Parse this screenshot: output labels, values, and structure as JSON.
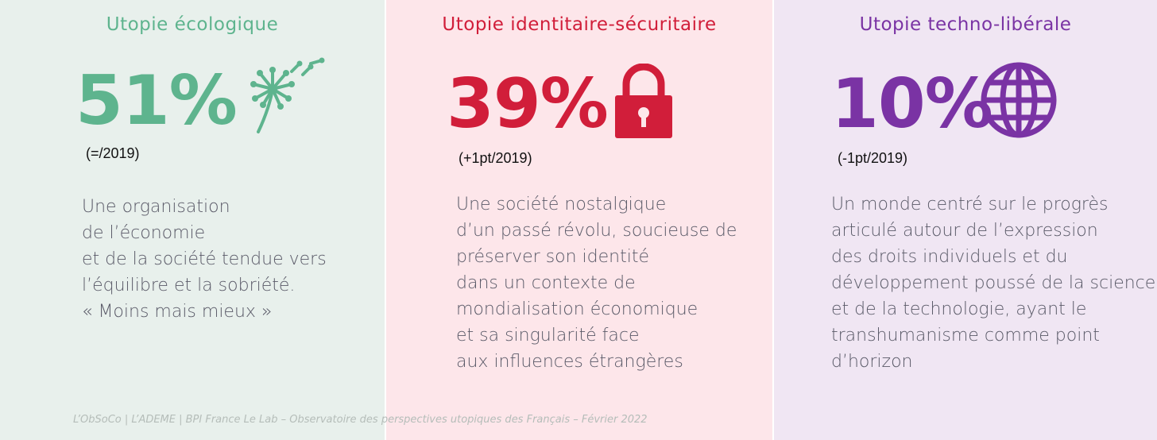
{
  "colors": {
    "ecologique": "#5eb48e",
    "securitaire": "#d11e3a",
    "liberale": "#7a33a4"
  },
  "panels": [
    {
      "title": "Utopie écologique",
      "percent": "51%",
      "change": "(=/2019)",
      "icon": "dandelion-icon",
      "lines": [
        "Une organisation",
        "de l’économie",
        "et de la société tendue vers",
        "l’équilibre et la sobriété.",
        "« Moins mais mieux »"
      ]
    },
    {
      "title": "Utopie identitaire-sécuritaire",
      "percent": "39%",
      "change": "(+1pt/2019)",
      "icon": "padlock-icon",
      "lines": [
        "Une société nostalgique",
        "d’un passé révolu, soucieuse de",
        "préserver son identité",
        "dans un contexte de",
        "mondialisation économique",
        "et sa singularité face",
        "aux influences étrangères"
      ]
    },
    {
      "title": "Utopie techno-libérale",
      "percent": "10%",
      "change": "(-1pt/2019)",
      "icon": "globe-icon",
      "lines": [
        "Un monde centré sur le progrès",
        "articulé autour de l’expression",
        "des droits individuels et du",
        "développement poussé de la science",
        "et de la technologie, ayant le",
        "transhumanisme comme point",
        "d’horizon"
      ]
    }
  ],
  "footer": "L’ObSoCo | L’ADEME | BPI France Le Lab – Observatoire des perspectives utopiques des Français – Février 2022"
}
